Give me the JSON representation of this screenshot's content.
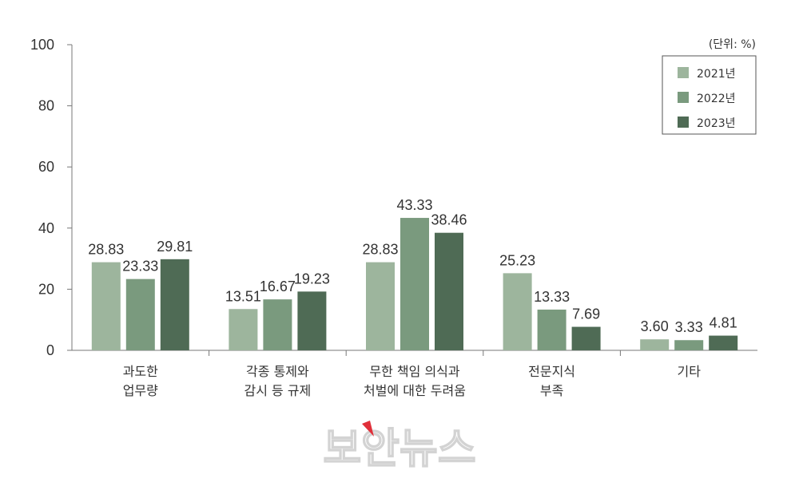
{
  "chart_data": {
    "type": "bar",
    "unit_note": "(단위: %)",
    "categories": [
      [
        "과도한",
        "업무량"
      ],
      [
        "각종 통제와",
        "감시 등 규제"
      ],
      [
        "무한 책임 의식과",
        "처벌에 대한 두려움"
      ],
      [
        "전문지식",
        "부족"
      ],
      [
        "기타"
      ]
    ],
    "series": [
      {
        "name": "2021년",
        "color": "#9db59d",
        "values": [
          28.83,
          13.51,
          28.83,
          25.23,
          3.6
        ]
      },
      {
        "name": "2022년",
        "color": "#7a9a7e",
        "values": [
          23.33,
          16.67,
          43.33,
          13.33,
          3.33
        ]
      },
      {
        "name": "2023년",
        "color": "#4f6b55",
        "values": [
          29.81,
          19.23,
          38.46,
          7.69,
          4.81
        ]
      }
    ],
    "yticks": [
      "0",
      "20",
      "40",
      "60",
      "80",
      "100"
    ],
    "ylim": [
      0,
      100
    ],
    "legend_position": "top-right",
    "grid": false
  },
  "watermark": {
    "text": "보안뉴스",
    "accent_color": "#e0303a"
  }
}
